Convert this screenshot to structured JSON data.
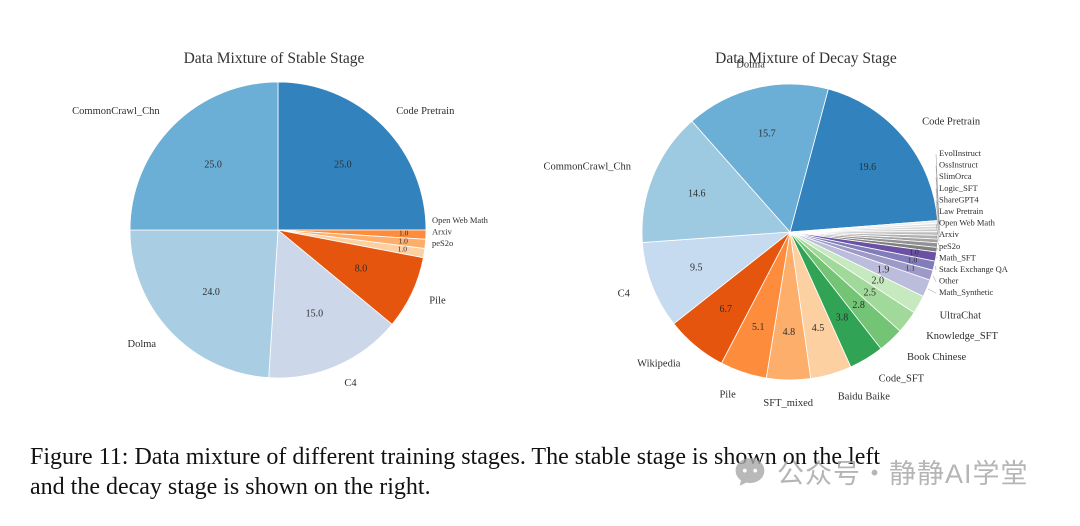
{
  "caption": {
    "line1": "Figure 11: Data mixture of different training stages. The stable stage is shown on the left",
    "line2": "and the decay stage is shown on the right."
  },
  "watermark": {
    "text": "公众号・静静AI学堂"
  },
  "chart_data": [
    {
      "type": "pie",
      "title": "Data Mixture of Stable Stage",
      "unit": "percent",
      "direction": "clockwise",
      "start_angle": 90,
      "legend": "none",
      "slices": [
        {
          "label": "Code Pretrain",
          "value": 25.0,
          "color": "#3182bd"
        },
        {
          "label": "Open Web Math",
          "value": 1.0,
          "color": "#fd8d3c"
        },
        {
          "label": "Arxiv",
          "value": 1.0,
          "color": "#fdae6b"
        },
        {
          "label": "peS2o",
          "value": 1.0,
          "color": "#fdd0a2"
        },
        {
          "label": "Pile",
          "value": 8.0,
          "color": "#e6550d"
        },
        {
          "label": "C4",
          "value": 15.0,
          "color": "#ccd7ea"
        },
        {
          "label": "Dolma",
          "value": 24.0,
          "color": "#a9cde3"
        },
        {
          "label": "CommonCrawl_Chn",
          "value": 25.0,
          "color": "#6baed6"
        }
      ]
    },
    {
      "type": "pie",
      "title": "Data Mixture of Decay Stage",
      "unit": "percent",
      "direction": "clockwise",
      "start_angle": 75,
      "legend": "none",
      "slices": [
        {
          "label": "Code Pretrain",
          "value": 19.6,
          "color": "#3182bd"
        },
        {
          "label": "EvolInstruct",
          "value": 0.3,
          "color": "#ededed"
        },
        {
          "label": "OssInstruct",
          "value": 0.3,
          "color": "#e2e2e2"
        },
        {
          "label": "SlimOrca",
          "value": 0.3,
          "color": "#d6d6d6"
        },
        {
          "label": "Logic_SFT",
          "value": 0.3,
          "color": "#cacaca"
        },
        {
          "label": "ShareGPT4",
          "value": 0.4,
          "color": "#bebebe"
        },
        {
          "label": "Law Pretrain",
          "value": 0.4,
          "color": "#b0b0b0"
        },
        {
          "label": "Open Web Math",
          "value": 0.4,
          "color": "#a2a2a2"
        },
        {
          "label": "Arxiv",
          "value": 0.5,
          "color": "#929292"
        },
        {
          "label": "peS2o",
          "value": 0.5,
          "color": "#7f7f7f"
        },
        {
          "label": "Math_SFT",
          "value": 1.0,
          "color": "#6a51a3"
        },
        {
          "label": "Stack Exchange QA",
          "value": 1.0,
          "color": "#807dba"
        },
        {
          "label": "Other",
          "value": 1.1,
          "color": "#9e9ac8"
        },
        {
          "label": "Math_Synthetic",
          "value": 1.9,
          "color": "#bcbddc"
        },
        {
          "label": "UltraChat",
          "value": 2.0,
          "color": "#c7e9c0"
        },
        {
          "label": "Knowledge_SFT",
          "value": 2.5,
          "color": "#a1d99b"
        },
        {
          "label": "Book Chinese",
          "value": 2.8,
          "color": "#74c476"
        },
        {
          "label": "Code_SFT",
          "value": 3.8,
          "color": "#31a354"
        },
        {
          "label": "Baidu Baike",
          "value": 4.5,
          "color": "#fdd0a2"
        },
        {
          "label": "SFT_mixed",
          "value": 4.8,
          "color": "#fdae6b"
        },
        {
          "label": "Pile",
          "value": 5.1,
          "color": "#fd8d3c"
        },
        {
          "label": "Wikipedia",
          "value": 6.7,
          "color": "#e6550d"
        },
        {
          "label": "C4",
          "value": 9.5,
          "color": "#c6dbef"
        },
        {
          "label": "CommonCrawl_Chn",
          "value": 14.6,
          "color": "#9ecae1"
        },
        {
          "label": "Dolma",
          "value": 15.7,
          "color": "#6baed6"
        }
      ]
    }
  ]
}
